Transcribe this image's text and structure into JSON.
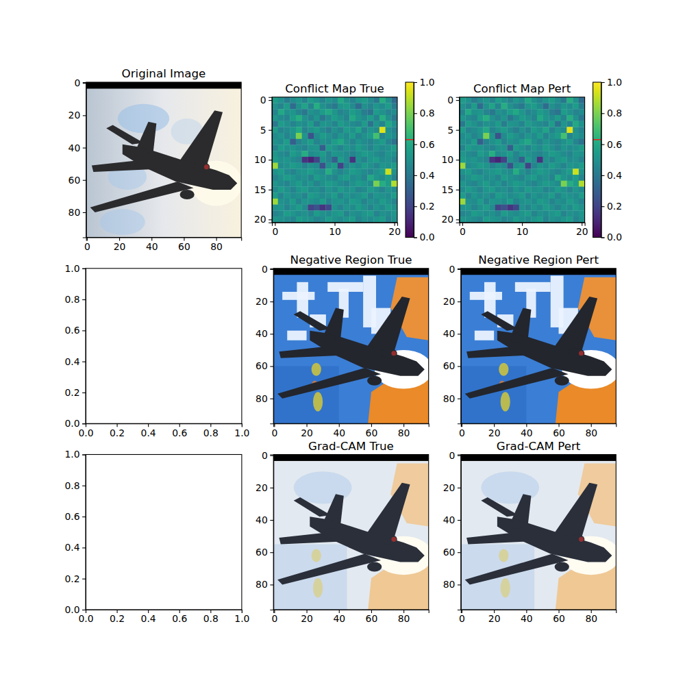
{
  "chart_data": [
    {
      "type": "image",
      "title": "Original Image",
      "xlim": [
        -0.5,
        95.5
      ],
      "ylim": [
        95.5,
        -0.5
      ],
      "xticks": [
        0,
        20,
        40,
        60,
        80
      ],
      "yticks": [
        0,
        20,
        40,
        60,
        80
      ]
    },
    {
      "type": "heatmap",
      "title": "Conflict Map True",
      "color": "viridis",
      "xlim": [
        -0.5,
        20.5
      ],
      "ylim": [
        20.5,
        -0.5
      ],
      "xticks": [
        0,
        10,
        20
      ],
      "yticks": [
        0,
        5,
        10,
        15,
        20
      ],
      "cells": [
        [
          0.55,
          0.5,
          0.42,
          0.48,
          0.52,
          0.45,
          0.55,
          0.5,
          0.45,
          0.52,
          0.48,
          0.6,
          0.5,
          0.45,
          0.52,
          0.55,
          0.48,
          0.4,
          0.62,
          0.5,
          0.35
        ],
        [
          0.5,
          0.45,
          0.55,
          0.35,
          0.5,
          0.58,
          0.45,
          0.62,
          0.5,
          0.45,
          0.4,
          0.52,
          0.55,
          0.48,
          0.35,
          0.5,
          0.45,
          0.52,
          0.48,
          0.55,
          0.42
        ],
        [
          0.45,
          0.6,
          0.5,
          0.52,
          0.45,
          0.4,
          0.5,
          0.48,
          0.55,
          0.6,
          0.52,
          0.45,
          0.48,
          0.55,
          0.5,
          0.42,
          0.38,
          0.55,
          0.5,
          0.45,
          0.48
        ],
        [
          0.52,
          0.48,
          0.45,
          0.55,
          0.62,
          0.5,
          0.45,
          0.52,
          0.4,
          0.48,
          0.55,
          0.5,
          0.45,
          0.6,
          0.52,
          0.48,
          0.55,
          0.45,
          0.62,
          0.5,
          0.4
        ],
        [
          0.4,
          0.55,
          0.5,
          0.45,
          0.5,
          0.48,
          0.55,
          0.42,
          0.52,
          0.5,
          0.45,
          0.55,
          0.5,
          0.48,
          0.45,
          0.55,
          0.38,
          0.52,
          0.45,
          0.6,
          0.5
        ],
        [
          0.55,
          0.45,
          0.48,
          0.52,
          0.6,
          0.45,
          0.5,
          0.55,
          0.48,
          0.42,
          0.5,
          0.45,
          0.55,
          0.5,
          0.58,
          0.45,
          0.52,
          0.48,
          0.95,
          0.5,
          0.45
        ],
        [
          0.48,
          0.52,
          0.45,
          0.5,
          0.8,
          0.52,
          0.25,
          0.48,
          0.55,
          0.5,
          0.45,
          0.52,
          0.48,
          0.55,
          0.45,
          0.5,
          0.55,
          0.7,
          0.45,
          0.52,
          0.48
        ],
        [
          0.5,
          0.48,
          0.55,
          0.3,
          0.45,
          0.5,
          0.55,
          0.45,
          0.5,
          0.48,
          0.55,
          0.6,
          0.5,
          0.45,
          0.52,
          0.48,
          0.45,
          0.5,
          0.55,
          0.45,
          0.38
        ],
        [
          0.45,
          0.55,
          0.5,
          0.52,
          0.48,
          0.45,
          0.5,
          0.52,
          0.3,
          0.55,
          0.5,
          0.45,
          0.52,
          0.48,
          0.55,
          0.5,
          0.45,
          0.52,
          0.48,
          0.5,
          0.55
        ],
        [
          0.52,
          0.48,
          0.45,
          0.55,
          0.5,
          0.62,
          0.48,
          0.5,
          0.55,
          0.45,
          0.52,
          0.5,
          0.48,
          0.45,
          0.5,
          0.55,
          0.52,
          0.48,
          0.45,
          0.52,
          0.5
        ],
        [
          0.55,
          0.5,
          0.52,
          0.48,
          0.45,
          0.15,
          0.1,
          0.2,
          0.5,
          0.45,
          0.3,
          0.55,
          0.48,
          0.15,
          0.5,
          0.45,
          0.52,
          0.55,
          0.48,
          0.5,
          0.45
        ],
        [
          0.85,
          0.48,
          0.5,
          0.55,
          0.52,
          0.45,
          0.5,
          0.48,
          0.25,
          0.5,
          0.55,
          0.2,
          0.45,
          0.52,
          0.48,
          0.55,
          0.5,
          0.45,
          0.52,
          0.5,
          0.55
        ],
        [
          0.5,
          0.55,
          0.48,
          0.45,
          0.5,
          0.52,
          0.55,
          0.5,
          0.48,
          0.62,
          0.5,
          0.45,
          0.5,
          0.55,
          0.52,
          0.48,
          0.45,
          0.5,
          0.55,
          0.92,
          0.5
        ],
        [
          0.45,
          0.5,
          0.55,
          0.52,
          0.48,
          0.5,
          0.45,
          0.55,
          0.5,
          0.48,
          0.45,
          0.52,
          0.55,
          0.48,
          0.5,
          0.45,
          0.6,
          0.52,
          0.48,
          0.55,
          0.45
        ],
        [
          0.52,
          0.48,
          0.45,
          0.5,
          0.55,
          0.48,
          0.52,
          0.45,
          0.5,
          0.55,
          0.52,
          0.48,
          0.45,
          0.5,
          0.55,
          0.52,
          0.48,
          0.8,
          0.62,
          0.55,
          0.88
        ],
        [
          0.48,
          0.55,
          0.5,
          0.45,
          0.52,
          0.55,
          0.48,
          0.5,
          0.45,
          0.52,
          0.48,
          0.55,
          0.5,
          0.52,
          0.45,
          0.48,
          0.55,
          0.5,
          0.45,
          0.52,
          0.48
        ],
        [
          0.55,
          0.45,
          0.52,
          0.48,
          0.5,
          0.45,
          0.55,
          0.52,
          0.48,
          0.5,
          0.55,
          0.45,
          0.52,
          0.48,
          0.5,
          0.55,
          0.45,
          0.52,
          0.5,
          0.48,
          0.55
        ],
        [
          0.85,
          0.5,
          0.48,
          0.55,
          0.45,
          0.52,
          0.5,
          0.48,
          0.55,
          0.45,
          0.5,
          0.52,
          0.48,
          0.55,
          0.52,
          0.45,
          0.5,
          0.48,
          0.55,
          0.5,
          0.45
        ],
        [
          0.5,
          0.52,
          0.45,
          0.5,
          0.55,
          0.48,
          0.2,
          0.25,
          0.15,
          0.22,
          0.5,
          0.45,
          0.52,
          0.48,
          0.55,
          0.5,
          0.45,
          0.52,
          0.48,
          0.55,
          0.5
        ],
        [
          0.45,
          0.48,
          0.55,
          0.52,
          0.48,
          0.5,
          0.45,
          0.55,
          0.5,
          0.48,
          0.52,
          0.55,
          0.45,
          0.5,
          0.48,
          0.52,
          0.55,
          0.45,
          0.5,
          0.48,
          0.52
        ],
        [
          0.52,
          0.5,
          0.48,
          0.45,
          0.55,
          0.52,
          0.5,
          0.45,
          0.48,
          0.55,
          0.5,
          0.48,
          0.52,
          0.55,
          0.45,
          0.5,
          0.48,
          0.52,
          0.55,
          0.45,
          0.5
        ]
      ],
      "colorbar": {
        "range": [
          0,
          1
        ],
        "ticks": [
          {
            "value": 0,
            "label": "0.0"
          },
          0.2,
          0.4,
          0.6,
          0.8,
          {
            "value": 1,
            "label": "1.0"
          }
        ],
        "threshold": 0.63
      }
    },
    {
      "type": "heatmap",
      "title": "Conflict Map Pert",
      "color": "viridis",
      "xlim": [
        -0.5,
        20.5
      ],
      "ylim": [
        20.5,
        -0.5
      ],
      "xticks": [
        0,
        10,
        20
      ],
      "yticks": [
        0,
        5,
        10,
        15,
        20
      ],
      "cells": [
        [
          0.55,
          0.5,
          0.42,
          0.48,
          0.52,
          0.45,
          0.55,
          0.5,
          0.45,
          0.52,
          0.48,
          0.6,
          0.5,
          0.45,
          0.52,
          0.55,
          0.48,
          0.4,
          0.62,
          0.5,
          0.35
        ],
        [
          0.5,
          0.45,
          0.55,
          0.35,
          0.5,
          0.58,
          0.45,
          0.62,
          0.5,
          0.45,
          0.4,
          0.52,
          0.55,
          0.48,
          0.35,
          0.5,
          0.45,
          0.52,
          0.48,
          0.55,
          0.42
        ],
        [
          0.45,
          0.6,
          0.5,
          0.52,
          0.45,
          0.4,
          0.5,
          0.48,
          0.55,
          0.6,
          0.52,
          0.45,
          0.48,
          0.55,
          0.5,
          0.42,
          0.38,
          0.55,
          0.5,
          0.45,
          0.48
        ],
        [
          0.52,
          0.48,
          0.45,
          0.55,
          0.62,
          0.5,
          0.45,
          0.52,
          0.4,
          0.48,
          0.55,
          0.5,
          0.45,
          0.6,
          0.52,
          0.48,
          0.55,
          0.45,
          0.62,
          0.5,
          0.4
        ],
        [
          0.4,
          0.55,
          0.5,
          0.45,
          0.5,
          0.48,
          0.55,
          0.42,
          0.52,
          0.5,
          0.45,
          0.55,
          0.5,
          0.48,
          0.45,
          0.55,
          0.38,
          0.52,
          0.45,
          0.6,
          0.5
        ],
        [
          0.55,
          0.45,
          0.48,
          0.52,
          0.6,
          0.45,
          0.5,
          0.55,
          0.48,
          0.42,
          0.5,
          0.45,
          0.55,
          0.5,
          0.58,
          0.45,
          0.52,
          0.48,
          0.95,
          0.5,
          0.45
        ],
        [
          0.48,
          0.52,
          0.45,
          0.5,
          0.8,
          0.52,
          0.25,
          0.48,
          0.55,
          0.5,
          0.45,
          0.52,
          0.48,
          0.55,
          0.45,
          0.5,
          0.55,
          0.7,
          0.45,
          0.52,
          0.48
        ],
        [
          0.5,
          0.48,
          0.55,
          0.3,
          0.45,
          0.5,
          0.55,
          0.45,
          0.5,
          0.48,
          0.55,
          0.6,
          0.5,
          0.45,
          0.52,
          0.48,
          0.45,
          0.5,
          0.55,
          0.45,
          0.38
        ],
        [
          0.45,
          0.55,
          0.5,
          0.52,
          0.48,
          0.45,
          0.5,
          0.52,
          0.3,
          0.55,
          0.5,
          0.45,
          0.52,
          0.48,
          0.55,
          0.5,
          0.45,
          0.52,
          0.48,
          0.5,
          0.55
        ],
        [
          0.52,
          0.48,
          0.45,
          0.55,
          0.5,
          0.62,
          0.48,
          0.5,
          0.55,
          0.45,
          0.52,
          0.5,
          0.48,
          0.45,
          0.5,
          0.55,
          0.52,
          0.48,
          0.45,
          0.52,
          0.5
        ],
        [
          0.55,
          0.5,
          0.52,
          0.48,
          0.45,
          0.15,
          0.1,
          0.2,
          0.5,
          0.45,
          0.3,
          0.55,
          0.48,
          0.15,
          0.5,
          0.45,
          0.52,
          0.55,
          0.48,
          0.5,
          0.45
        ],
        [
          0.85,
          0.48,
          0.5,
          0.55,
          0.52,
          0.45,
          0.5,
          0.48,
          0.25,
          0.5,
          0.55,
          0.2,
          0.45,
          0.52,
          0.48,
          0.55,
          0.5,
          0.45,
          0.52,
          0.5,
          0.55
        ],
        [
          0.5,
          0.55,
          0.48,
          0.45,
          0.5,
          0.52,
          0.55,
          0.5,
          0.48,
          0.62,
          0.5,
          0.45,
          0.5,
          0.55,
          0.52,
          0.48,
          0.45,
          0.5,
          0.55,
          0.92,
          0.5
        ],
        [
          0.45,
          0.5,
          0.55,
          0.52,
          0.48,
          0.5,
          0.45,
          0.55,
          0.5,
          0.48,
          0.45,
          0.52,
          0.55,
          0.48,
          0.5,
          0.45,
          0.6,
          0.52,
          0.48,
          0.55,
          0.45
        ],
        [
          0.52,
          0.48,
          0.45,
          0.5,
          0.55,
          0.48,
          0.52,
          0.45,
          0.5,
          0.55,
          0.52,
          0.48,
          0.45,
          0.5,
          0.55,
          0.52,
          0.48,
          0.8,
          0.62,
          0.55,
          0.88
        ],
        [
          0.48,
          0.55,
          0.5,
          0.45,
          0.52,
          0.55,
          0.48,
          0.5,
          0.45,
          0.52,
          0.48,
          0.55,
          0.5,
          0.52,
          0.45,
          0.48,
          0.55,
          0.5,
          0.45,
          0.52,
          0.48
        ],
        [
          0.55,
          0.45,
          0.52,
          0.48,
          0.5,
          0.45,
          0.55,
          0.52,
          0.48,
          0.5,
          0.55,
          0.45,
          0.52,
          0.48,
          0.5,
          0.55,
          0.45,
          0.52,
          0.5,
          0.48,
          0.55
        ],
        [
          0.85,
          0.5,
          0.48,
          0.55,
          0.45,
          0.52,
          0.5,
          0.48,
          0.55,
          0.45,
          0.5,
          0.52,
          0.48,
          0.55,
          0.52,
          0.45,
          0.5,
          0.48,
          0.55,
          0.5,
          0.45
        ],
        [
          0.5,
          0.52,
          0.45,
          0.5,
          0.55,
          0.48,
          0.2,
          0.25,
          0.15,
          0.22,
          0.5,
          0.45,
          0.52,
          0.48,
          0.55,
          0.5,
          0.45,
          0.52,
          0.48,
          0.55,
          0.5
        ],
        [
          0.45,
          0.48,
          0.55,
          0.52,
          0.48,
          0.5,
          0.45,
          0.55,
          0.5,
          0.48,
          0.52,
          0.55,
          0.45,
          0.5,
          0.48,
          0.52,
          0.55,
          0.45,
          0.5,
          0.48,
          0.52
        ],
        [
          0.52,
          0.5,
          0.48,
          0.45,
          0.55,
          0.52,
          0.5,
          0.45,
          0.48,
          0.55,
          0.5,
          0.48,
          0.52,
          0.55,
          0.45,
          0.5,
          0.48,
          0.52,
          0.55,
          0.45,
          0.5
        ]
      ],
      "colorbar": {
        "range": [
          0,
          1
        ],
        "ticks": [
          {
            "value": 0,
            "label": "0.0"
          },
          0.2,
          0.4,
          0.6,
          0.8,
          {
            "value": 1,
            "label": "1.0"
          }
        ],
        "threshold": 0.63
      }
    },
    {
      "type": "empty",
      "xlim": [
        0,
        1
      ],
      "ylim": [
        0,
        1
      ],
      "xticks": [
        {
          "value": 0,
          "label": "0.0"
        },
        0.2,
        0.4,
        0.6,
        0.8,
        {
          "value": 1,
          "label": "1.0"
        }
      ],
      "yticks": [
        {
          "value": 0,
          "label": "0.0"
        },
        0.2,
        0.4,
        0.6,
        0.8,
        {
          "value": 1,
          "label": "1.0"
        }
      ]
    },
    {
      "type": "mask",
      "title": "Negative Region True",
      "xlim": [
        -0.5,
        95.5
      ],
      "ylim": [
        95.5,
        -0.5
      ],
      "xticks": [
        0,
        20,
        40,
        60,
        80
      ],
      "yticks": [
        0,
        20,
        40,
        60,
        80
      ]
    },
    {
      "type": "mask",
      "title": "Negative Region Pert",
      "xlim": [
        -0.5,
        95.5
      ],
      "ylim": [
        95.5,
        -0.5
      ],
      "xticks": [
        0,
        20,
        40,
        60,
        80
      ],
      "yticks": [
        0,
        20,
        40,
        60,
        80
      ]
    },
    {
      "type": "empty",
      "xlim": [
        0,
        1
      ],
      "ylim": [
        0,
        1
      ],
      "xticks": [
        {
          "value": 0,
          "label": "0.0"
        },
        0.2,
        0.4,
        0.6,
        0.8,
        {
          "value": 1,
          "label": "1.0"
        }
      ],
      "yticks": [
        {
          "value": 0,
          "label": "0.0"
        },
        0.2,
        0.4,
        0.6,
        0.8,
        {
          "value": 1,
          "label": "1.0"
        }
      ]
    },
    {
      "type": "cam",
      "title": "Grad-CAM True",
      "xlim": [
        -0.5,
        95.5
      ],
      "ylim": [
        95.5,
        -0.5
      ],
      "xticks": [
        0,
        20,
        40,
        60,
        80
      ],
      "yticks": [
        0,
        20,
        40,
        60,
        80
      ]
    },
    {
      "type": "cam",
      "title": "Grad-CAM Pert",
      "xlim": [
        -0.5,
        95.5
      ],
      "ylim": [
        95.5,
        -0.5
      ],
      "xticks": [
        0,
        20,
        40,
        60,
        80
      ],
      "yticks": [
        0,
        20,
        40,
        60,
        80
      ]
    }
  ]
}
